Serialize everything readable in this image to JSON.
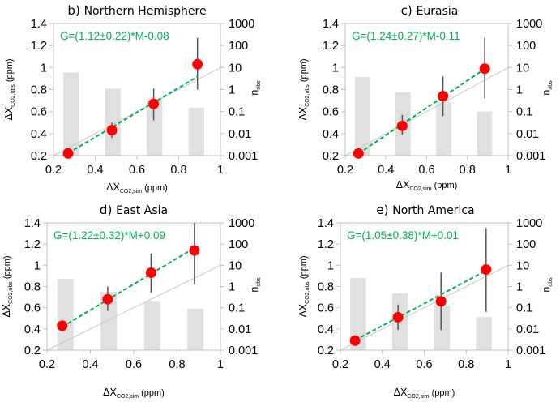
{
  "figure": {
    "colors": {
      "point": "#ff0000",
      "fit_line": "#00b050",
      "one_to_one": "#c8c8c8",
      "bar": "#e0e0e0",
      "error_bar": "#555555",
      "axis": "#c0c0c0",
      "equation": "#00b050"
    }
  },
  "chart_data": [
    {
      "id": "b",
      "type": "scatter",
      "panel_letter": "b)",
      "title": "Northern Hemisphere",
      "equation": "G=(1.12±0.22)*M-0.08",
      "xlabel": {
        "main": "ΔX",
        "sub": "CO2,sim",
        "unit": " (ppm)"
      },
      "ylabel": {
        "main": "ΔX",
        "sub": "CO2,obs",
        "unit": " (ppm)"
      },
      "y2label": {
        "main": "n",
        "sub": "obs"
      },
      "xlim": [
        0.2,
        1.0
      ],
      "ylim": [
        0.2,
        1.4
      ],
      "y2lim_log": [
        0.001,
        1000
      ],
      "xticks": [
        "0.2",
        "0.4",
        "0.6",
        "0.8",
        "1"
      ],
      "yticks": [
        "0.2",
        "0.4",
        "0.6",
        "0.8",
        "1",
        "1.2",
        "1.4"
      ],
      "y2ticks": [
        "0.001",
        "0.01",
        "0.1",
        "1",
        "10",
        "100",
        "1000"
      ],
      "points": [
        {
          "x": 0.27,
          "y": 0.22,
          "err_low": 0.22,
          "err_high": 0.22
        },
        {
          "x": 0.48,
          "y": 0.43,
          "err_low": 0.36,
          "err_high": 0.5
        },
        {
          "x": 0.68,
          "y": 0.67,
          "err_low": 0.52,
          "err_high": 0.81
        },
        {
          "x": 0.89,
          "y": 1.03,
          "err_low": 0.8,
          "err_high": 1.27
        }
      ],
      "bars": [
        {
          "x": 0.3,
          "n_obs": 6.0
        },
        {
          "x": 0.5,
          "n_obs": 1.1
        },
        {
          "x": 0.7,
          "n_obs": 0.37
        },
        {
          "x": 0.9,
          "n_obs": 0.15
        }
      ],
      "fit": {
        "slope": 1.12,
        "intercept": -0.08,
        "x_range": [
          0.27,
          0.89
        ]
      },
      "one_to_one": true,
      "grid": false
    },
    {
      "id": "c",
      "type": "scatter",
      "panel_letter": "c)",
      "title": "Eurasia",
      "equation": "G=(1.24±0.27)*M-0.11",
      "xlabel": {
        "main": "ΔX",
        "sub": "CO2,sim",
        "unit": " (ppm)"
      },
      "ylabel": {
        "main": "ΔX",
        "sub": "CO2,obs",
        "unit": " (ppm)"
      },
      "y2label": {
        "main": "n",
        "sub": "obs"
      },
      "xlim": [
        0.2,
        1.0
      ],
      "ylim": [
        0.2,
        1.4
      ],
      "y2lim_log": [
        0.001,
        1000
      ],
      "xticks": [
        "0.2",
        "0.4",
        "0.6",
        "0.8",
        "1"
      ],
      "yticks": [
        "0.2",
        "0.4",
        "0.6",
        "0.8",
        "1",
        "1.2",
        "1.4"
      ],
      "y2ticks": [
        "0.001",
        "0.01",
        "0.1",
        "1",
        "10",
        "100",
        "1000"
      ],
      "points": [
        {
          "x": 0.265,
          "y": 0.22,
          "err_low": 0.22,
          "err_high": 0.22
        },
        {
          "x": 0.48,
          "y": 0.47,
          "err_low": 0.39,
          "err_high": 0.57
        },
        {
          "x": 0.68,
          "y": 0.74,
          "err_low": 0.56,
          "err_high": 0.92
        },
        {
          "x": 0.885,
          "y": 0.99,
          "err_low": 0.72,
          "err_high": 1.27
        }
      ],
      "bars": [
        {
          "x": 0.3,
          "n_obs": 3.7
        },
        {
          "x": 0.5,
          "n_obs": 0.74
        },
        {
          "x": 0.7,
          "n_obs": 0.27
        },
        {
          "x": 0.9,
          "n_obs": 0.1
        }
      ],
      "fit": {
        "slope": 1.24,
        "intercept": -0.11,
        "x_range": [
          0.265,
          0.885
        ]
      },
      "one_to_one": true,
      "grid": false
    },
    {
      "id": "d",
      "type": "scatter",
      "panel_letter": "d)",
      "title": "East Asia",
      "equation": "G=(1.22±0.32)*M+0.09",
      "xlabel": {
        "main": "ΔX",
        "sub": "CO2,sim",
        "unit": " (ppm)"
      },
      "ylabel": {
        "main": "ΔX",
        "sub": "CO2,obs",
        "unit": " (ppm)"
      },
      "y2label": {
        "main": "n",
        "sub": "obs"
      },
      "xlim": [
        0.2,
        1.0
      ],
      "ylim": [
        0.2,
        1.4
      ],
      "y2lim_log": [
        0.001,
        1000
      ],
      "xticks": [
        "0.2",
        "0.4",
        "0.6",
        "0.8",
        "1"
      ],
      "yticks": [
        "0.2",
        "0.4",
        "0.6",
        "0.8",
        "1",
        "1.2",
        "1.4"
      ],
      "y2ticks": [
        "0.001",
        "0.01",
        "0.1",
        "1",
        "10",
        "100",
        "1000"
      ],
      "points": [
        {
          "x": 0.27,
          "y": 0.43,
          "err_low": 0.43,
          "err_high": 0.43
        },
        {
          "x": 0.48,
          "y": 0.68,
          "err_low": 0.57,
          "err_high": 0.8
        },
        {
          "x": 0.68,
          "y": 0.93,
          "err_low": 0.74,
          "err_high": 1.11
        },
        {
          "x": 0.88,
          "y": 1.14,
          "err_low": 0.82,
          "err_high": 1.4
        }
      ],
      "bars": [
        {
          "x": 0.3,
          "n_obs": 2.3
        },
        {
          "x": 0.5,
          "n_obs": 0.56
        },
        {
          "x": 0.7,
          "n_obs": 0.21
        },
        {
          "x": 0.9,
          "n_obs": 0.09
        }
      ],
      "fit": {
        "slope": 1.22,
        "intercept": 0.09,
        "x_range": [
          0.27,
          0.88
        ]
      },
      "one_to_one": true,
      "grid": false
    },
    {
      "id": "e",
      "type": "scatter",
      "panel_letter": "e)",
      "title": "North America",
      "equation": "G=(1.05±0.38)*M+0.01",
      "xlabel": {
        "main": "ΔX",
        "sub": "CO2,sim",
        "unit": " (ppm)"
      },
      "ylabel": {
        "main": "ΔX",
        "sub": "CO2,obs",
        "unit": " (ppm)"
      },
      "y2label": {
        "main": "n",
        "sub": "obs"
      },
      "xlim": [
        0.2,
        1.0
      ],
      "ylim": [
        0.2,
        1.4
      ],
      "y2lim_log": [
        0.001,
        1000
      ],
      "xticks": [
        "0.2",
        "0.4",
        "0.6",
        "0.8",
        "1"
      ],
      "yticks": [
        "0.2",
        "0.4",
        "0.6",
        "0.8",
        "1",
        "1.2",
        "1.4"
      ],
      "y2ticks": [
        "0.001",
        "0.01",
        "0.1",
        "1",
        "10",
        "100",
        "1000"
      ],
      "points": [
        {
          "x": 0.27,
          "y": 0.29,
          "err_low": 0.29,
          "err_high": 0.29
        },
        {
          "x": 0.475,
          "y": 0.51,
          "err_low": 0.39,
          "err_high": 0.63
        },
        {
          "x": 0.68,
          "y": 0.66,
          "err_low": 0.39,
          "err_high": 0.93
        },
        {
          "x": 0.895,
          "y": 0.96,
          "err_low": 0.56,
          "err_high": 1.35
        }
      ],
      "bars": [
        {
          "x": 0.3,
          "n_obs": 2.5
        },
        {
          "x": 0.5,
          "n_obs": 0.47
        },
        {
          "x": 0.7,
          "n_obs": 0.13
        },
        {
          "x": 0.9,
          "n_obs": 0.036
        }
      ],
      "fit": {
        "slope": 1.05,
        "intercept": 0.01,
        "x_range": [
          0.27,
          0.895
        ]
      },
      "one_to_one": true,
      "grid": false
    }
  ]
}
